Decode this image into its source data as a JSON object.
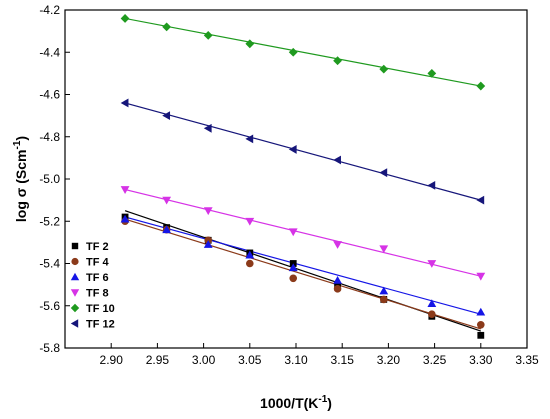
{
  "chart_data": {
    "type": "scatter",
    "xlabel": "1000/T(K",
    "xlabel_sup": "-1",
    "xlabel_tail": ")",
    "ylabel": "log σ (Scm",
    "ylabel_sup": "-1",
    "ylabel_tail": ")",
    "xlim": [
      2.85,
      3.35
    ],
    "ylim": [
      -5.8,
      -4.2
    ],
    "xticks": [
      "2.90",
      "2.95",
      "3.00",
      "3.05",
      "3.10",
      "3.15",
      "3.20",
      "3.25",
      "3.30",
      "3.35"
    ],
    "yticks": [
      "-4.2",
      "-4.4",
      "-4.6",
      "-4.8",
      "-5.0",
      "-5.2",
      "-5.4",
      "-5.6",
      "-5.8"
    ],
    "grid": false,
    "legend_position": "bottom-left",
    "x": [
      2.915,
      2.96,
      3.005,
      3.05,
      3.097,
      3.145,
      3.195,
      3.247,
      3.3
    ],
    "series": [
      {
        "name": "TF 2",
        "marker": "square",
        "color": "#000000",
        "line_color": "#000000",
        "values": [
          -5.18,
          -5.23,
          -5.29,
          -5.35,
          -5.4,
          -5.51,
          -5.57,
          -5.65,
          -5.74
        ],
        "fit": [
          -5.15,
          -5.72
        ]
      },
      {
        "name": "TF 4",
        "marker": "circle",
        "color": "#8b3a1a",
        "line_color": "#8b3a1a",
        "values": [
          -5.2,
          -5.24,
          -5.29,
          -5.4,
          -5.47,
          -5.52,
          -5.57,
          -5.64,
          -5.69
        ],
        "fit": [
          -5.19,
          -5.71
        ]
      },
      {
        "name": "TF 6",
        "marker": "triangle-up",
        "color": "#1515e6",
        "line_color": "#1515e6",
        "values": [
          -5.19,
          -5.24,
          -5.31,
          -5.36,
          -5.42,
          -5.48,
          -5.53,
          -5.59,
          -5.63
        ],
        "fit": [
          -5.18,
          -5.64
        ]
      },
      {
        "name": "TF 8",
        "marker": "triangle-down",
        "color": "#d633e6",
        "line_color": "#d633e6",
        "values": [
          -5.05,
          -5.1,
          -5.15,
          -5.2,
          -5.25,
          -5.31,
          -5.33,
          -5.4,
          -5.46
        ],
        "fit": [
          -5.05,
          -5.46
        ]
      },
      {
        "name": "TF 10",
        "marker": "diamond",
        "color": "#1f9a1f",
        "line_color": "#1f9a1f",
        "values": [
          -4.24,
          -4.28,
          -4.32,
          -4.36,
          -4.4,
          -4.44,
          -4.48,
          -4.5,
          -4.56
        ],
        "fit": [
          -4.24,
          -4.56
        ]
      },
      {
        "name": "TF 12",
        "marker": "triangle-left",
        "color": "#16167a",
        "line_color": "#16167a",
        "values": [
          -4.64,
          -4.7,
          -4.76,
          -4.81,
          -4.86,
          -4.91,
          -4.97,
          -5.03,
          -5.1
        ],
        "fit": [
          -4.64,
          -5.1
        ]
      }
    ]
  }
}
